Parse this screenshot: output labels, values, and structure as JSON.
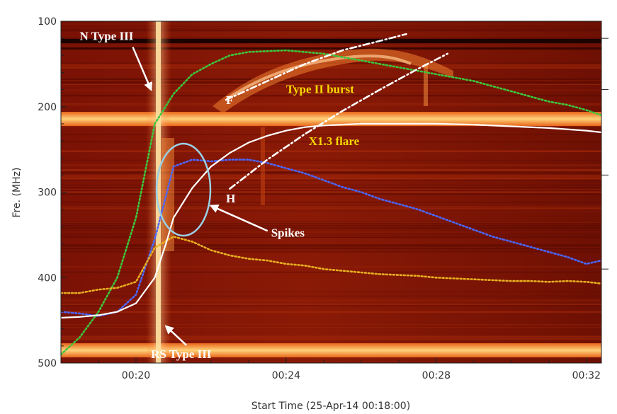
{
  "chart_data": {
    "type": "heatmap",
    "xlabel": "Start Time (25-Apr-14 00:18:00)",
    "ylabel": "Fre. (MHz)",
    "x_unit": "minutes",
    "xlim": [
      18,
      32.4
    ],
    "ylim": [
      100,
      500
    ],
    "y_inverted": true,
    "x_ticks": [
      {
        "value": 20,
        "label": "00:20"
      },
      {
        "value": 24,
        "label": "00:24"
      },
      {
        "value": 28,
        "label": "00:28"
      },
      {
        "value": 32,
        "label": "00:32"
      }
    ],
    "y_ticks": [
      {
        "value": 100,
        "label": "100"
      },
      {
        "value": 200,
        "label": "200"
      },
      {
        "value": 300,
        "label": "300"
      },
      {
        "value": 400,
        "label": "400"
      },
      {
        "value": 500,
        "label": "500"
      }
    ],
    "grid": false,
    "annotations": [
      {
        "text": "N Type III",
        "x": 18.5,
        "y": 122,
        "color": "white",
        "arrow_to": [
          20.4,
          180
        ]
      },
      {
        "text": "Type II burst",
        "x": 24.0,
        "y": 184,
        "color": "yellow"
      },
      {
        "text": "F",
        "x": 22.4,
        "y": 197,
        "color": "white"
      },
      {
        "text": "X1.3 flare",
        "x": 24.6,
        "y": 245,
        "color": "yellow"
      },
      {
        "text": "H",
        "x": 22.4,
        "y": 312,
        "color": "white"
      },
      {
        "text": "Spikes",
        "x": 23.6,
        "y": 352,
        "color": "white",
        "arrow_to": [
          22.0,
          316
        ]
      },
      {
        "text": "RS Type III",
        "x": 20.4,
        "y": 494,
        "color": "white",
        "arrow_to": [
          20.8,
          457
        ]
      }
    ],
    "series": [
      {
        "color": "#3cc83c",
        "style": "dotted",
        "x": [
          18.0,
          18.5,
          19.0,
          19.5,
          20.0,
          20.5,
          21.0,
          21.5,
          22.0,
          22.5,
          23.0,
          23.5,
          24.0,
          24.5,
          25.0,
          25.5,
          26.0,
          26.5,
          27.0,
          27.5,
          28.0,
          28.5,
          29.0,
          29.5,
          30.0,
          30.5,
          31.0,
          31.5,
          32.0,
          32.4
        ],
        "y": [
          490,
          470,
          440,
          400,
          330,
          220,
          185,
          162,
          150,
          140,
          136,
          135,
          134,
          136,
          138,
          142,
          146,
          150,
          154,
          158,
          162,
          166,
          170,
          176,
          182,
          188,
          194,
          198,
          204,
          210
        ]
      },
      {
        "color": "#4a68ff",
        "style": "dotted",
        "x": [
          18.0,
          18.5,
          19.0,
          19.5,
          20.0,
          20.5,
          21.0,
          21.5,
          22.0,
          22.5,
          23.0,
          23.5,
          24.0,
          24.5,
          25.0,
          25.5,
          26.0,
          26.5,
          27.0,
          27.5,
          28.0,
          28.5,
          29.0,
          29.5,
          30.0,
          30.5,
          31.0,
          31.5,
          32.0,
          32.4
        ],
        "y": [
          440,
          442,
          445,
          440,
          420,
          355,
          270,
          262,
          264,
          262,
          262,
          266,
          272,
          278,
          286,
          294,
          300,
          308,
          314,
          320,
          328,
          336,
          344,
          352,
          358,
          364,
          370,
          376,
          384,
          380
        ]
      },
      {
        "color": "#e8b020",
        "style": "dotted",
        "x": [
          18.0,
          18.5,
          19.0,
          19.5,
          20.0,
          20.5,
          21.0,
          21.5,
          22.0,
          22.5,
          23.0,
          23.5,
          24.0,
          24.5,
          25.0,
          25.5,
          26.0,
          26.5,
          27.0,
          27.5,
          28.0,
          28.5,
          29.0,
          29.5,
          30.0,
          30.5,
          31.0,
          31.5,
          32.0,
          32.4
        ],
        "y": [
          418,
          418,
          414,
          412,
          405,
          365,
          352,
          358,
          368,
          374,
          378,
          380,
          384,
          386,
          390,
          392,
          394,
          396,
          397,
          398,
          400,
          401,
          402,
          403,
          404,
          404,
          405,
          404,
          405,
          407
        ]
      },
      {
        "color": "#ffffff",
        "style": "solid",
        "x": [
          18.0,
          18.5,
          19.0,
          19.5,
          20.0,
          20.5,
          20.8,
          21.0,
          21.5,
          22.0,
          22.5,
          23.0,
          23.5,
          24.0,
          24.5,
          25.0,
          25.5,
          26.0,
          27.0,
          28.0,
          29.0,
          30.0,
          31.0,
          32.0,
          32.4
        ],
        "y": [
          447,
          446,
          444,
          440,
          430,
          400,
          360,
          330,
          295,
          270,
          254,
          242,
          234,
          228,
          224,
          222,
          221,
          220,
          220,
          220,
          221,
          223,
          225,
          228,
          230
        ]
      },
      {
        "color": "#ffffff",
        "style": "dashdot",
        "x": [
          22.4,
          23.5,
          24.5,
          25.5,
          26.5,
          27.2
        ],
        "y": [
          192,
          170,
          150,
          134,
          123,
          115
        ]
      },
      {
        "color": "#ffffff",
        "style": "dashdot",
        "x": [
          22.5,
          23.5,
          24.5,
          25.5,
          26.5,
          27.5,
          28.3
        ],
        "y": [
          296,
          262,
          232,
          205,
          180,
          156,
          138
        ]
      }
    ]
  }
}
